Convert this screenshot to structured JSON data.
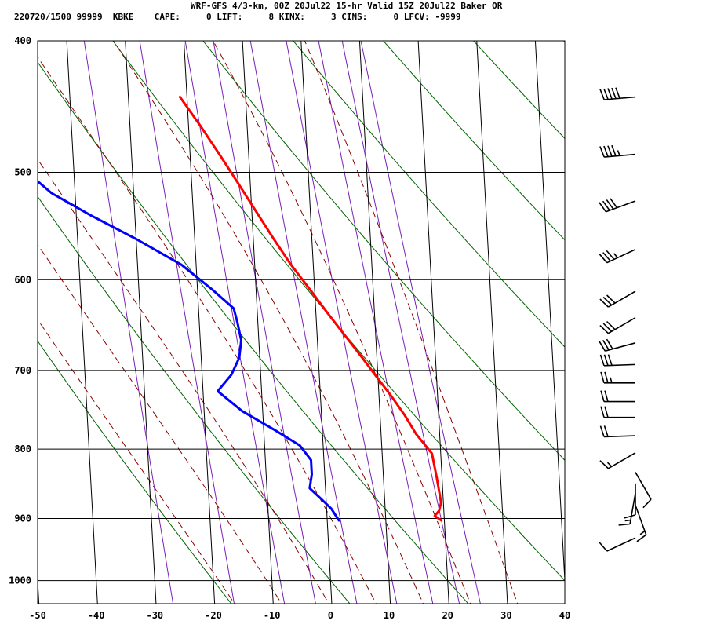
{
  "header": {
    "title": "WRF-GFS 4/3-km, 00Z 20Jul22 15-hr Valid 15Z 20Jul22 Baker OR",
    "stats": "220720/1500 99999  KBKE    CAPE:     0 LIFT:     8 KINX:     3 CINS:     0 LFCV: -9999"
  },
  "colors": {
    "temperature": "#ff0000",
    "dewpoint": "#0000ff",
    "isotherm_grid": "#000000",
    "dry_adiabat": "#006400",
    "moist_adiabat": "#8b0000",
    "mixing_ratio": "#7a1fb8",
    "wind_barb": "#000000"
  },
  "chart_data": {
    "type": "line",
    "title": "",
    "xlabel": "",
    "ylabel": "",
    "diagram": "skew-t log-p",
    "xlim": [
      -50,
      40
    ],
    "ylim": [
      1040,
      400
    ],
    "y_scale": "log",
    "grid": true,
    "x_ticks": [
      -50,
      -40,
      -30,
      -20,
      -10,
      0,
      10,
      20,
      30,
      40
    ],
    "y_ticks": [
      400,
      500,
      600,
      700,
      800,
      900,
      1000
    ],
    "series": [
      {
        "key": "temperature",
        "points": [
          [
            19.5,
            903
          ],
          [
            18.4,
            896
          ],
          [
            19.2,
            888
          ],
          [
            19.6,
            876
          ],
          [
            19.1,
            840
          ],
          [
            18.5,
            806
          ],
          [
            16.0,
            780
          ],
          [
            14.2,
            755
          ],
          [
            12.0,
            730
          ],
          [
            10.0,
            710
          ],
          [
            7.5,
            685
          ],
          [
            4.8,
            660
          ],
          [
            2.0,
            635
          ],
          [
            -0.8,
            610
          ],
          [
            -3.8,
            585
          ],
          [
            -6.5,
            560
          ],
          [
            -9.2,
            535
          ],
          [
            -12.0,
            510
          ],
          [
            -15.0,
            485
          ],
          [
            -18.0,
            462
          ],
          [
            -21.2,
            440
          ]
        ]
      },
      {
        "key": "dewpoint",
        "points": [
          [
            2.0,
            903
          ],
          [
            0.8,
            885
          ],
          [
            -0.9,
            870
          ],
          [
            -2.7,
            855
          ],
          [
            -2.2,
            835
          ],
          [
            -2.2,
            815
          ],
          [
            -4.0,
            795
          ],
          [
            -8.0,
            775
          ],
          [
            -13.5,
            750
          ],
          [
            -17.5,
            725
          ],
          [
            -15.0,
            705
          ],
          [
            -13.5,
            685
          ],
          [
            -13.0,
            665
          ],
          [
            -13.5,
            645
          ],
          [
            -14.0,
            630
          ],
          [
            -17.5,
            610
          ],
          [
            -22.5,
            585
          ],
          [
            -30.0,
            560
          ],
          [
            -37.5,
            538
          ],
          [
            -44.0,
            518
          ],
          [
            -48.0,
            500
          ],
          [
            -52.0,
            486
          ],
          [
            -58.0,
            440
          ]
        ]
      }
    ],
    "wind_barbs": [
      {
        "p": 440,
        "dir": 265,
        "speed": 50
      },
      {
        "p": 485,
        "dir": 265,
        "speed": 45
      },
      {
        "p": 525,
        "dir": 250,
        "speed": 40
      },
      {
        "p": 570,
        "dir": 245,
        "speed": 35
      },
      {
        "p": 612,
        "dir": 240,
        "speed": 30
      },
      {
        "p": 640,
        "dir": 240,
        "speed": 30
      },
      {
        "p": 668,
        "dir": 255,
        "speed": 30
      },
      {
        "p": 693,
        "dir": 268,
        "speed": 30
      },
      {
        "p": 715,
        "dir": 270,
        "speed": 25
      },
      {
        "p": 738,
        "dir": 270,
        "speed": 20
      },
      {
        "p": 758,
        "dir": 270,
        "speed": 20
      },
      {
        "p": 782,
        "dir": 268,
        "speed": 20
      },
      {
        "p": 805,
        "dir": 240,
        "speed": 15
      },
      {
        "p": 832,
        "dir": 150,
        "speed": 10
      },
      {
        "p": 848,
        "dir": 180,
        "speed": 10
      },
      {
        "p": 862,
        "dir": 190,
        "speed": 15
      },
      {
        "p": 880,
        "dir": 160,
        "speed": 15
      },
      {
        "p": 930,
        "dir": 245,
        "speed": 10
      }
    ]
  }
}
